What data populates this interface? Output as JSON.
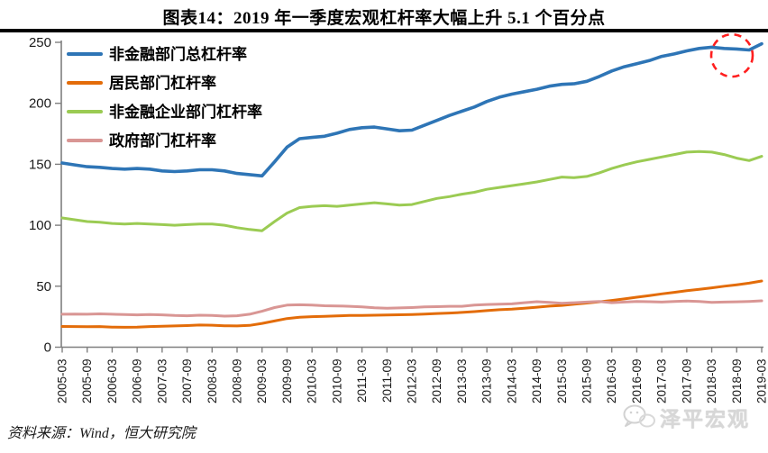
{
  "title": "图表14：2019 年一季度宏观杠杆率大幅上升 5.1 个百分点",
  "source_note": "资料来源：Wind，恒大研究院",
  "watermark": "泽平宏观",
  "colors": {
    "total_line": "#2E75B6",
    "household_line": "#E36C09",
    "corporate_line": "#9BCB53",
    "government_line": "#D99694",
    "highlight_circle": "#FF1F1F",
    "axis": "#7F7F7F",
    "tick_text": "#1a1a1a"
  },
  "chart_data": {
    "type": "line",
    "title": "图表14：2019 年一季度宏观杠杆率大幅上升 5.1 个百分点",
    "xlabel": "",
    "ylabel": "",
    "ylim": [
      0,
      250
    ],
    "yticks": [
      0,
      50,
      100,
      150,
      200,
      250
    ],
    "grid": false,
    "legend_position": "top-left",
    "x": [
      "2005-03",
      "2005-06",
      "2005-09",
      "2005-12",
      "2006-03",
      "2006-06",
      "2006-09",
      "2006-12",
      "2007-03",
      "2007-06",
      "2007-09",
      "2007-12",
      "2008-03",
      "2008-06",
      "2008-09",
      "2008-12",
      "2009-03",
      "2009-06",
      "2009-09",
      "2009-12",
      "2010-03",
      "2010-06",
      "2010-09",
      "2010-12",
      "2011-03",
      "2011-06",
      "2011-09",
      "2011-12",
      "2012-03",
      "2012-06",
      "2012-09",
      "2012-12",
      "2013-03",
      "2013-06",
      "2013-09",
      "2013-12",
      "2014-03",
      "2014-06",
      "2014-09",
      "2014-12",
      "2015-03",
      "2015-06",
      "2015-09",
      "2015-12",
      "2016-03",
      "2016-06",
      "2016-09",
      "2016-12",
      "2017-03",
      "2017-06",
      "2017-09",
      "2017-12",
      "2018-03",
      "2018-06",
      "2018-09",
      "2018-12",
      "2019-03"
    ],
    "x_ticks": [
      "2005-03",
      "2005-09",
      "2006-03",
      "2006-09",
      "2007-03",
      "2007-09",
      "2008-03",
      "2008-09",
      "2009-03",
      "2009-09",
      "2010-03",
      "2010-09",
      "2011-03",
      "2011-09",
      "2012-03",
      "2012-09",
      "2013-03",
      "2013-09",
      "2014-03",
      "2014-09",
      "2015-03",
      "2015-09",
      "2016-03",
      "2016-09",
      "2017-03",
      "2017-09",
      "2018-03",
      "2018-09",
      "2019-03"
    ],
    "series": [
      {
        "key": "total",
        "name": "非金融部门总杠杆率",
        "color": "#2E75B6",
        "values": [
          151,
          149.5,
          148,
          147.5,
          146.5,
          146,
          146.5,
          146,
          144.5,
          144,
          144.5,
          145.5,
          145.5,
          144.5,
          142.5,
          141.5,
          140.5,
          152,
          164,
          171,
          172,
          173,
          175.5,
          178.5,
          180,
          180.5,
          179,
          177.5,
          178,
          182,
          186,
          190,
          193.5,
          197,
          201.5,
          205,
          207.5,
          209.5,
          211.5,
          214,
          215.5,
          216,
          218,
          222,
          226.5,
          230,
          232.5,
          235,
          238.5,
          240.5,
          243,
          245,
          246,
          245,
          244.5,
          243.7,
          248.8
        ]
      },
      {
        "key": "household",
        "name": "居民部门杠杆率",
        "color": "#E36C09",
        "values": [
          17,
          16.9,
          16.8,
          16.9,
          16.5,
          16.3,
          16.5,
          16.9,
          17.1,
          17.4,
          17.7,
          18.2,
          18,
          17.6,
          17.4,
          17.9,
          19.5,
          21.5,
          23.5,
          24.5,
          25,
          25.3,
          25.6,
          26,
          26.1,
          26.2,
          26.4,
          26.6,
          26.8,
          27.2,
          27.6,
          28,
          28.5,
          29.2,
          30,
          30.7,
          31.2,
          32,
          32.8,
          33.7,
          34.3,
          35.2,
          36.2,
          37.2,
          38.3,
          39.6,
          41,
          42.3,
          43.7,
          45,
          46.3,
          47.4,
          48.7,
          50,
          51.2,
          52.5,
          54.3
        ]
      },
      {
        "key": "corporate",
        "name": "非金融企业部门杠杆率",
        "color": "#9BCB53",
        "values": [
          106,
          104.5,
          103,
          102.5,
          101.5,
          101,
          101.5,
          101,
          100.5,
          100,
          100.5,
          101,
          101,
          100,
          98,
          96.5,
          95.5,
          103,
          110,
          114.5,
          115.5,
          116,
          115.5,
          116.5,
          117.5,
          118.5,
          117.5,
          116.5,
          117,
          119.5,
          122,
          123.5,
          125.5,
          127,
          129.5,
          131,
          132.5,
          134,
          135.5,
          137.5,
          139.5,
          139,
          140,
          143,
          146.5,
          149.5,
          152,
          154,
          156,
          158,
          160,
          160.5,
          160,
          158,
          155,
          153,
          156.5
        ]
      },
      {
        "key": "government",
        "name": "政府部门杠杆率",
        "color": "#D99694",
        "values": [
          27,
          27.2,
          27,
          27.3,
          27,
          26.8,
          26.5,
          26.8,
          26.5,
          26,
          25.8,
          26.2,
          26,
          25.5,
          25.8,
          27,
          29.5,
          32.5,
          34.5,
          34.8,
          34.5,
          34,
          33.8,
          33.5,
          33,
          32.3,
          32,
          32.2,
          32.5,
          33,
          33.2,
          33.5,
          33.5,
          34.5,
          35,
          35.2,
          35.5,
          36.5,
          37.3,
          36.8,
          36,
          36.5,
          37,
          37.5,
          36.5,
          37,
          37.5,
          37.3,
          37,
          37.5,
          37.8,
          37.5,
          36.8,
          37,
          37.2,
          37.5,
          38
        ]
      }
    ],
    "annotation": {
      "shape": "dashed-circle",
      "color": "#FF1F1F",
      "target_x": "2019-03",
      "covers": "2018-03 至 2019-03 末端上升段"
    }
  }
}
